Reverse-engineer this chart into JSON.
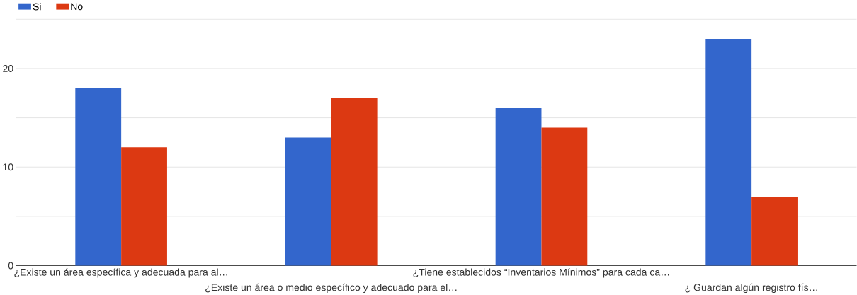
{
  "chart_data": {
    "type": "bar",
    "categories": [
      "¿Existe un área específica y adecuada para al…",
      "¿Existe un área o medio específico y adecuado para el…",
      "¿Tiene establecidos “Inventarios Mínimos” para cada ca…",
      "¿ Guardan algún registro fís…"
    ],
    "series": [
      {
        "name": "Si",
        "color": "#3366cc",
        "values": [
          18,
          13,
          16,
          23
        ]
      },
      {
        "name": "No",
        "color": "#dc3912",
        "values": [
          12,
          17,
          14,
          7
        ]
      }
    ],
    "ylim": [
      0,
      25
    ],
    "yticks": [
      0,
      {
        "value": 5,
        "label": null
      },
      10,
      {
        "value": 15,
        "label": null
      },
      20,
      {
        "value": 25,
        "label": null
      }
    ],
    "grid": "y",
    "legend": "top left"
  }
}
